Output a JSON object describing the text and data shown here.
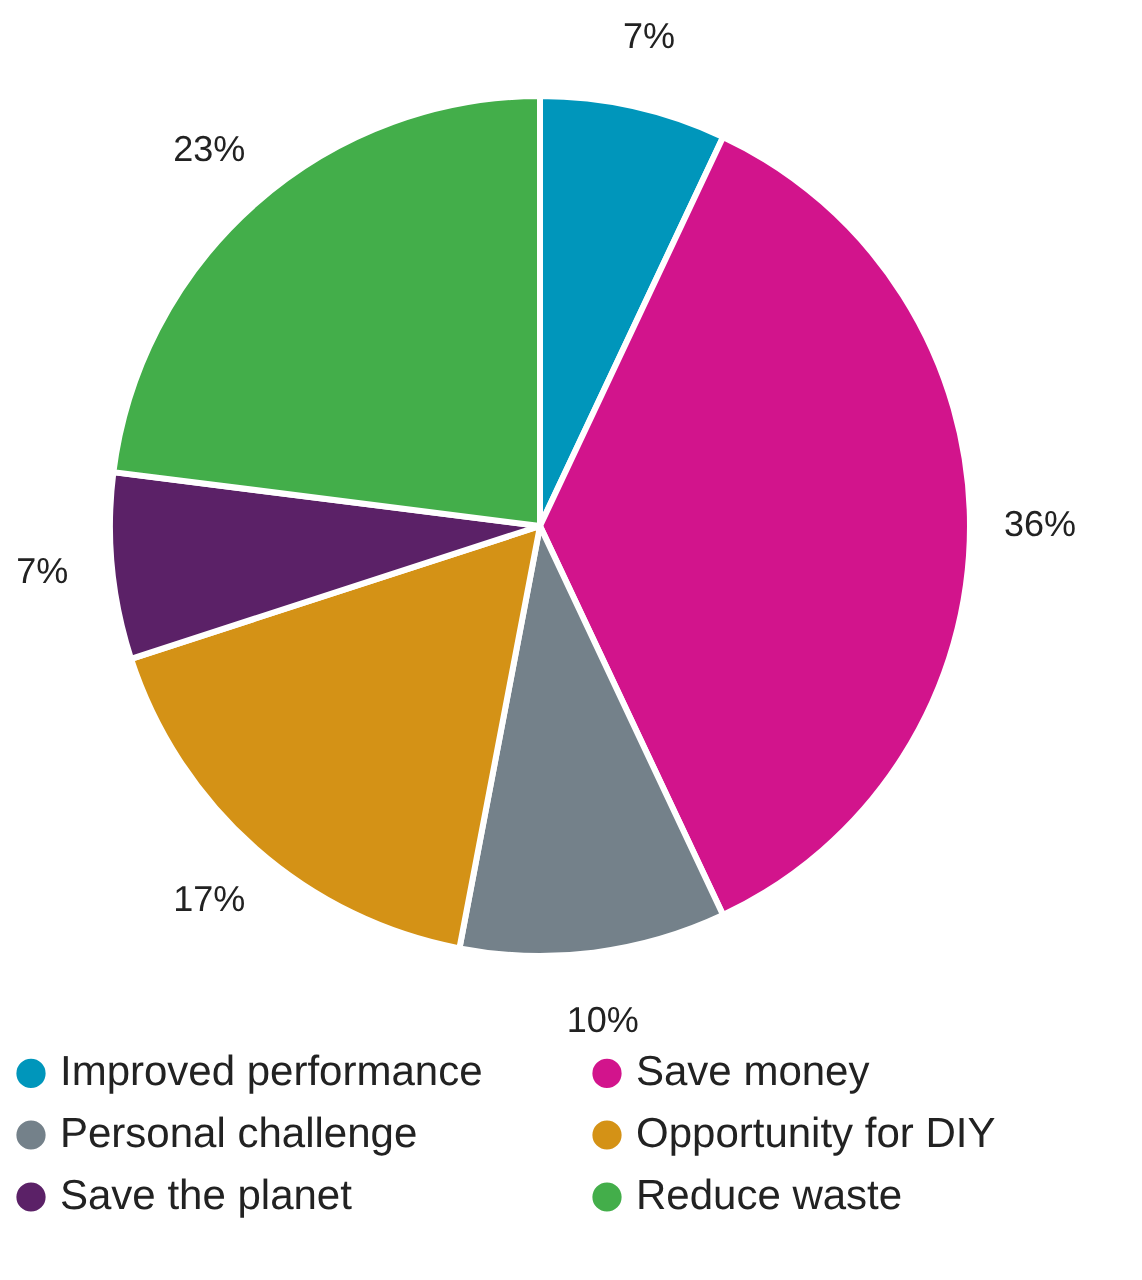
{
  "chart_data": {
    "type": "pie",
    "categories": [
      "Improved performance",
      "Save money",
      "Personal challenge",
      "Opportunity for DIY",
      "Save the planet",
      "Reduce waste"
    ],
    "values": [
      7,
      36,
      10,
      17,
      7,
      23
    ],
    "colors": [
      "#0096bb",
      "#d2148c",
      "#74818a",
      "#d49216",
      "#5b2167",
      "#43ae4a"
    ],
    "value_labels": [
      "7%",
      "36%",
      "10%",
      "17%",
      "7%",
      "23%"
    ],
    "legend": "bottom"
  }
}
